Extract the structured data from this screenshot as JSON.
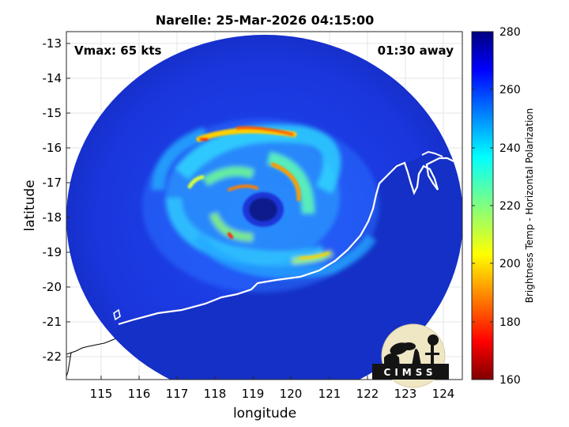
{
  "title": "Narelle: 25-Mar-2026 04:15:00",
  "vmax_label": "Vmax: 65 kts",
  "time_label": "01:30 away",
  "xlabel": "longitude",
  "ylabel": "latitude",
  "x_ticks": [
    "115",
    "116",
    "117",
    "118",
    "119",
    "120",
    "121",
    "122",
    "123",
    "124"
  ],
  "y_ticks": [
    "-13",
    "-14",
    "-15",
    "-16",
    "-17",
    "-18",
    "-19",
    "-20",
    "-21",
    "-22"
  ],
  "colorbar": {
    "label": "Brightness Temp - Horizontal Polarization",
    "ticks": [
      "280",
      "260",
      "240",
      "220",
      "200",
      "180",
      "160"
    ],
    "range": [
      160,
      280
    ]
  },
  "logo_text": "CIMSS",
  "colors": {
    "cold_ocean": "#1a2fd0",
    "jet_dark_red": "#800000",
    "jet_dark_blue": "#000080"
  }
}
